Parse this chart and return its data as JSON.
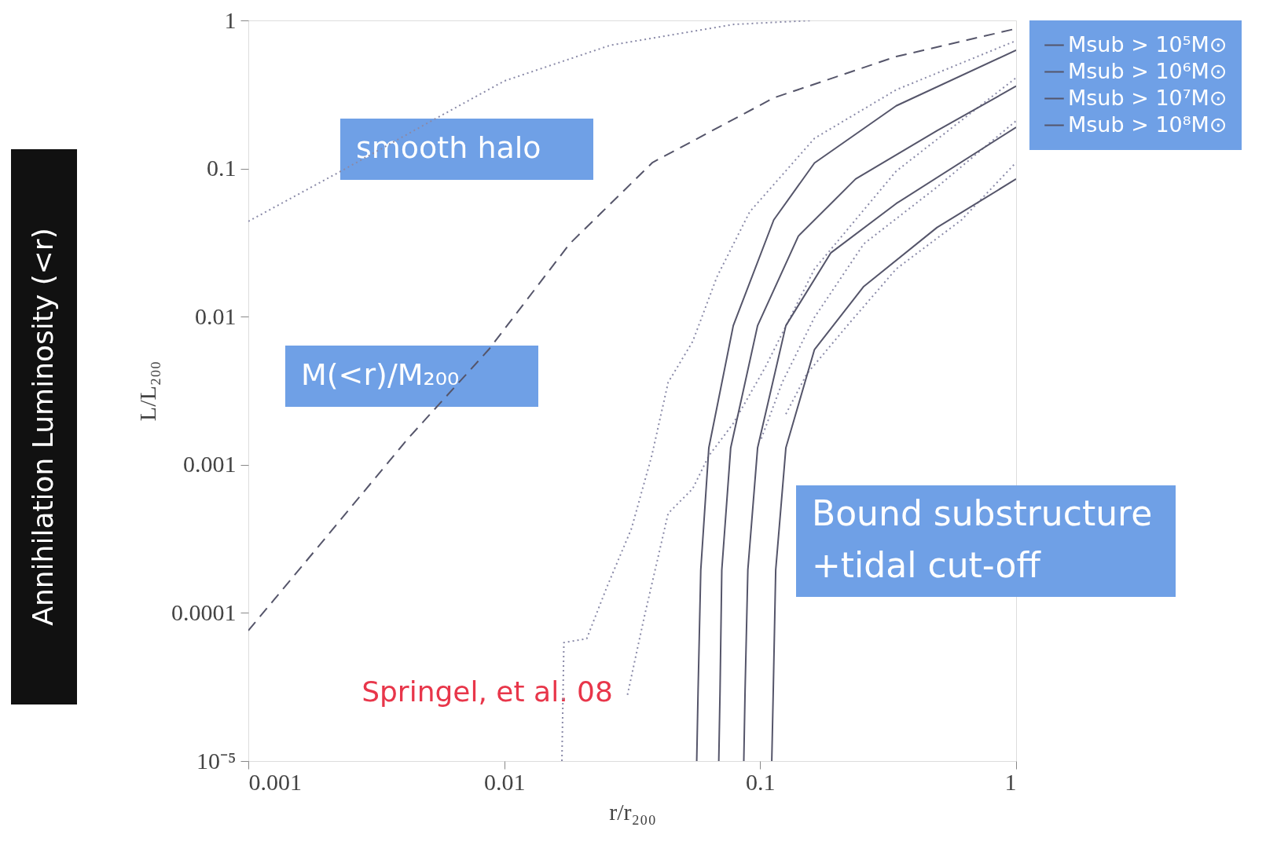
{
  "chart_data": {
    "type": "line",
    "xlabel": "r/r₂₀₀",
    "ylabel": "L/L₂₀₀",
    "log": "xy",
    "grid": false,
    "legend": "right",
    "xlim": [
      0.001,
      1
    ],
    "xticks": [
      0.001,
      0.01,
      0.1,
      1
    ],
    "ylim": [
      1e-05,
      1
    ],
    "yticks": [
      {
        "value": 1e-05,
        "label": "10⁻⁵"
      },
      0.0001,
      0.001,
      0.01,
      0.1,
      1
    ],
    "series": [
      {
        "type": "line",
        "line_style": "dotted",
        "color": "#8a8aa8",
        "x": [
          0.001,
          0.0023,
          0.0052,
          0.01,
          0.026,
          0.079,
          0.16
        ],
        "values": [
          0.044,
          0.096,
          0.21,
          0.39,
          0.68,
          0.94,
          1.0
        ]
      },
      {
        "type": "line",
        "line_style": "dashed",
        "color": "#55556a",
        "x": [
          0.001,
          0.002,
          0.0042,
          0.0087,
          0.018,
          0.038,
          0.113,
          0.34,
          1
        ],
        "values": [
          7.6e-05,
          0.00032,
          0.0015,
          0.006,
          0.031,
          0.11,
          0.3,
          0.57,
          0.88
        ]
      },
      {
        "type": "line",
        "line_style": "dotted",
        "color": "#8a8aa8",
        "x": [
          0.0168,
          0.0171,
          0.021,
          0.0252,
          0.0314,
          0.0377,
          0.0437,
          0.0545,
          0.0678,
          0.091,
          0.163,
          0.34,
          1
        ],
        "values": [
          1e-05,
          6.3e-05,
          6.7e-05,
          0.00015,
          0.00037,
          0.00115,
          0.0036,
          0.0068,
          0.0186,
          0.051,
          0.16,
          0.34,
          0.73
        ]
      },
      {
        "type": "line",
        "line_style": "dotted",
        "color": "#8a8aa8",
        "x": [
          0.0303,
          0.0351,
          0.0437,
          0.0545,
          0.063,
          0.0785,
          0.105,
          0.163,
          0.34,
          1
        ],
        "values": [
          2.8e-05,
          9.1e-05,
          0.00047,
          0.00069,
          0.00115,
          0.0019,
          0.0046,
          0.021,
          0.096,
          0.41
        ]
      },
      {
        "type": "line",
        "line_style": "dotted",
        "color": "#8a8aa8",
        "x": [
          0.101,
          0.122,
          0.163,
          0.254,
          0.491,
          1
        ],
        "values": [
          0.0015,
          0.0036,
          0.0099,
          0.031,
          0.075,
          0.21
        ]
      },
      {
        "type": "line",
        "line_style": "dotted",
        "color": "#8a8aa8",
        "x": [
          0.126,
          0.152,
          0.219,
          0.34,
          0.612,
          1
        ],
        "values": [
          0.0022,
          0.0041,
          0.0087,
          0.021,
          0.045,
          0.11
        ]
      },
      {
        "type": "line",
        "line_style": "solid",
        "name": "Msub > 10⁵M⊙",
        "color": "#55556a",
        "x": [
          0.0565,
          0.0572,
          0.0586,
          0.063,
          0.0785,
          0.113,
          0.163,
          0.34,
          1
        ],
        "values": [
          1e-05,
          3e-05,
          0.000195,
          0.0013,
          0.0087,
          0.045,
          0.109,
          0.265,
          0.63
        ]
      },
      {
        "type": "line",
        "line_style": "solid",
        "name": "Msub > 10⁶M⊙",
        "color": "#55556a",
        "x": [
          0.0689,
          0.0697,
          0.0708,
          0.0767,
          0.0977,
          0.141,
          0.236,
          0.491,
          1
        ],
        "values": [
          1e-05,
          3e-05,
          0.000195,
          0.0013,
          0.0087,
          0.035,
          0.085,
          0.18,
          0.36
        ]
      },
      {
        "type": "line",
        "line_style": "solid",
        "name": "Msub > 10⁷M⊙",
        "color": "#55556a",
        "x": [
          0.0863,
          0.0873,
          0.0895,
          0.0977,
          0.126,
          0.189,
          0.34,
          1
        ],
        "values": [
          1e-05,
          3e-05,
          0.000195,
          0.0013,
          0.0087,
          0.027,
          0.058,
          0.19
        ]
      },
      {
        "type": "line",
        "line_style": "solid",
        "name": "Msub > 10⁸M⊙",
        "color": "#55556a",
        "x": [
          0.111,
          0.1125,
          0.115,
          0.126,
          0.163,
          0.254,
          0.491,
          1
        ],
        "values": [
          1e-05,
          3e-05,
          0.000195,
          0.0013,
          0.006,
          0.016,
          0.04,
          0.085
        ]
      }
    ],
    "annotations": [
      "smooth halo",
      "M(<r)/M₂₀₀",
      "Bound substructure\n+tidal cut-off",
      "Springel, et al. 08",
      "Annihilation Luminosity (<r)"
    ]
  }
}
